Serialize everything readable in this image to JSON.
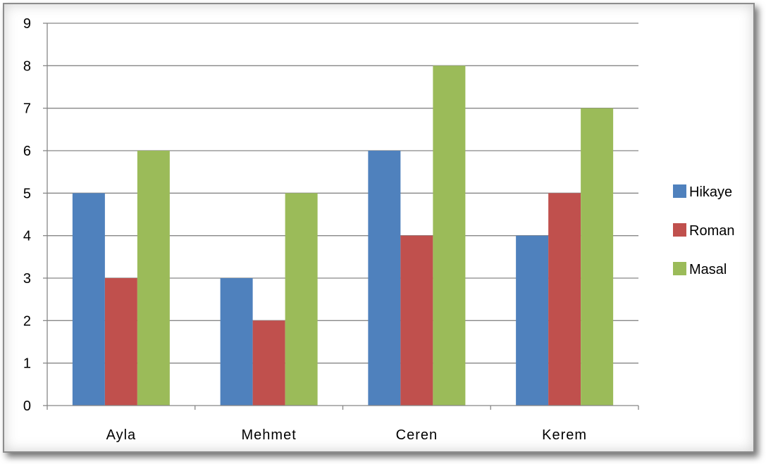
{
  "chart_data": {
    "type": "bar",
    "title": "",
    "xlabel": "",
    "ylabel": "",
    "categories": [
      "Ayla",
      "Mehmet",
      "Ceren",
      "Kerem"
    ],
    "series": [
      {
        "name": "Hikaye",
        "values": [
          5,
          3,
          6,
          4
        ],
        "color": "#4F81BD"
      },
      {
        "name": "Roman",
        "values": [
          3,
          2,
          4,
          5
        ],
        "color": "#C0504D"
      },
      {
        "name": "Masal",
        "values": [
          6,
          5,
          8,
          7
        ],
        "color": "#9BBB59"
      }
    ],
    "ylim": [
      0,
      9
    ],
    "yticks": [
      "0",
      "1",
      "2",
      "3",
      "4",
      "5",
      "6",
      "7",
      "8",
      "9"
    ],
    "grid": true,
    "legend_position": "right"
  }
}
